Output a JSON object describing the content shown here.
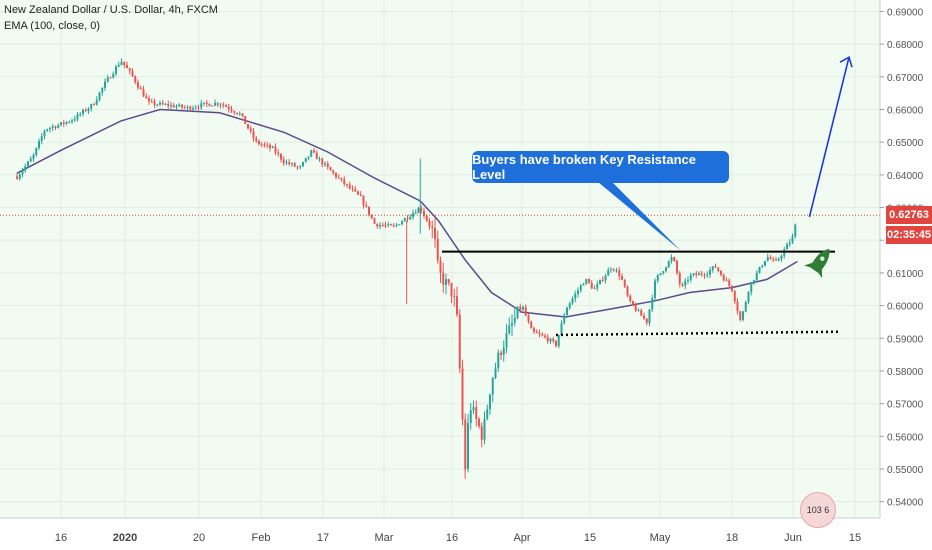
{
  "legend": {
    "symbol_line": "New Zealand Dollar / U.S. Dollar, 4h, FXCM",
    "indicator_line": "EMA (100, close, 0)"
  },
  "annotation": {
    "callout_text": "Buyers have broken Key Resistance Level"
  },
  "price_badge": {
    "value": "0.62763",
    "color": "#e0453f"
  },
  "timer_badge": {
    "value": "02:35:45",
    "color": "#e0453f"
  },
  "sticker_text": "103 6",
  "colors": {
    "background": "#f1fbf1",
    "candle_up": "#26a69a",
    "candle_down": "#ef5350",
    "ema": "#5b4a8f",
    "arrow": "#1a3bd6",
    "rocket": "#2e7d32",
    "resistance": "#000000"
  },
  "chart_data": {
    "type": "candlestick",
    "title": "New Zealand Dollar / U.S. Dollar, 4h, FXCM",
    "indicator": "EMA (100, close, 0)",
    "ylim": [
      0.535,
      0.6935
    ],
    "y_ticks": [
      "0.69000",
      "0.68000",
      "0.67000",
      "0.66000",
      "0.65000",
      "0.64000",
      "0.63000",
      "0.62000",
      "0.61000",
      "0.60000",
      "0.59000",
      "0.58000",
      "0.57000",
      "0.56000",
      "0.55000",
      "0.54000"
    ],
    "x_ticks": [
      "16",
      "2020",
      "20",
      "Feb",
      "17",
      "Mar",
      "16",
      "Apr",
      "15",
      "May",
      "18",
      "Jun",
      "15"
    ],
    "last_price": 0.62763,
    "close_path": [
      [
        "Dec 5",
        0.6395
      ],
      [
        "Dec 9",
        0.6455
      ],
      [
        "Dec 12",
        0.654
      ],
      [
        "Dec 16",
        0.6555
      ],
      [
        "Dec 19",
        0.657
      ],
      [
        "Dec 24",
        0.6615
      ],
      [
        "Dec 27",
        0.668
      ],
      [
        "Dec 31",
        0.675
      ],
      [
        "Jan 3",
        0.67
      ],
      [
        "Jan 7",
        0.662
      ],
      [
        "Jan 10",
        0.6615
      ],
      [
        "Jan 14",
        0.661
      ],
      [
        "Jan 17",
        0.6605
      ],
      [
        "Jan 21",
        0.6615
      ],
      [
        "Jan 24",
        0.662
      ],
      [
        "Jan 28",
        0.6585
      ],
      [
        "Jan 31",
        0.65
      ],
      [
        "Feb 4",
        0.648
      ],
      [
        "Feb 7",
        0.644
      ],
      [
        "Feb 11",
        0.642
      ],
      [
        "Feb 14",
        0.647
      ],
      [
        "Feb 18",
        0.642
      ],
      [
        "Feb 21",
        0.638
      ],
      [
        "Feb 25",
        0.633
      ],
      [
        "Feb 28",
        0.625
      ],
      [
        "Mar 3",
        0.624
      ],
      [
        "Mar 6",
        0.627
      ],
      [
        "Mar 9",
        0.63
      ],
      [
        "Mar 12",
        0.622
      ],
      [
        "Mar 13",
        0.61
      ],
      [
        "Mar 16",
        0.604
      ],
      [
        "Mar 17",
        0.599
      ],
      [
        "Mar 18",
        0.575
      ],
      [
        "Mar 19",
        0.55
      ],
      [
        "Mar 20",
        0.57
      ],
      [
        "Mar 23",
        0.56
      ],
      [
        "Mar 25",
        0.577
      ],
      [
        "Mar 27",
        0.586
      ],
      [
        "Mar 30",
        0.595
      ],
      [
        "Apr 1",
        0.6
      ],
      [
        "Apr 3",
        0.592
      ],
      [
        "Apr 6",
        0.59
      ],
      [
        "Apr 8",
        0.588
      ],
      [
        "Apr 10",
        0.599
      ],
      [
        "Apr 14",
        0.608
      ],
      [
        "Apr 16",
        0.605
      ],
      [
        "Apr 20",
        0.612
      ],
      [
        "Apr 22",
        0.609
      ],
      [
        "Apr 24",
        0.601
      ],
      [
        "Apr 28",
        0.595
      ],
      [
        "Apr 30",
        0.608
      ],
      [
        "May 4",
        0.615
      ],
      [
        "May 6",
        0.605
      ],
      [
        "May 8",
        0.609
      ],
      [
        "May 12",
        0.61
      ],
      [
        "May 14",
        0.612
      ],
      [
        "May 18",
        0.605
      ],
      [
        "May 20",
        0.595
      ],
      [
        "May 22",
        0.606
      ],
      [
        "May 26",
        0.615
      ],
      [
        "May 28",
        0.613
      ],
      [
        "Jun 1",
        0.621
      ],
      [
        "Jun 2",
        0.6276
      ]
    ],
    "ema_path": [
      [
        "Dec 5",
        0.6405
      ],
      [
        "Dec 16",
        0.6475
      ],
      [
        "Dec 31",
        0.6565
      ],
      [
        "Jan 10",
        0.66
      ],
      [
        "Jan 24",
        0.659
      ],
      [
        "Feb 7",
        0.653
      ],
      [
        "Feb 18",
        0.647
      ],
      [
        "Feb 28",
        0.639
      ],
      [
        "Mar 9",
        0.632
      ],
      [
        "Mar 13",
        0.626
      ],
      [
        "Mar 19",
        0.614
      ],
      [
        "Mar 25",
        0.604
      ],
      [
        "Apr 1",
        0.598
      ],
      [
        "Apr 10",
        0.5965
      ],
      [
        "Apr 20",
        0.599
      ],
      [
        "Apr 30",
        0.6015
      ],
      [
        "May 8",
        0.604
      ],
      [
        "May 18",
        0.6055
      ],
      [
        "May 26",
        0.608
      ],
      [
        "Jun 2",
        0.6135
      ]
    ],
    "resistance_level": 0.6165,
    "support_level": 0.5915,
    "projection_target": 0.676
  }
}
